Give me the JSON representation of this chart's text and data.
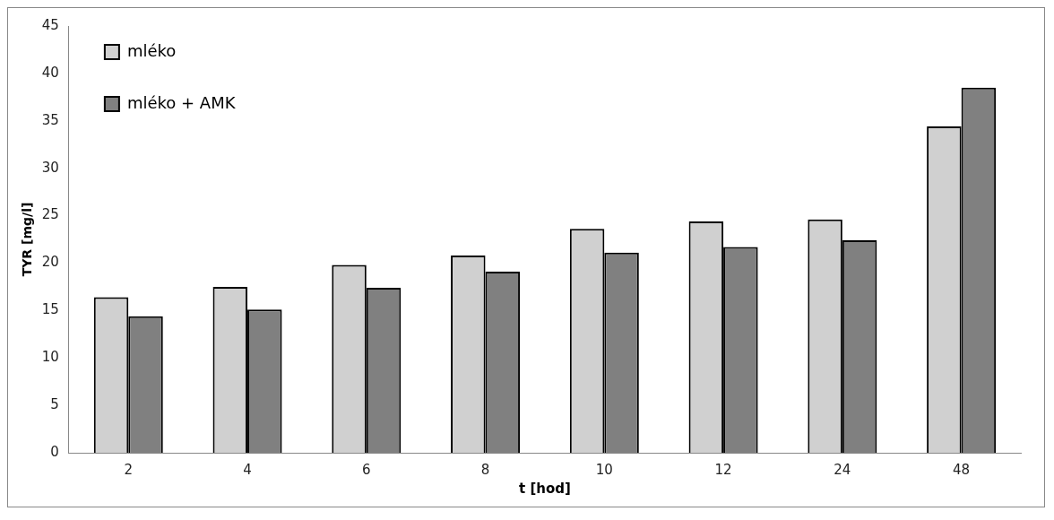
{
  "chart_data": {
    "type": "bar",
    "xlabel": "t [hod]",
    "ylabel": "TYR [mg/l]",
    "categories": [
      "2",
      "4",
      "6",
      "8",
      "10",
      "12",
      "24",
      "48"
    ],
    "series": [
      {
        "name": "mléko",
        "color": "#d0d0d0",
        "values": [
          16.4,
          17.5,
          19.8,
          20.8,
          23.6,
          24.4,
          24.6,
          34.4
        ]
      },
      {
        "name": "mléko + AMK",
        "color": "#808080",
        "values": [
          14.4,
          15.1,
          17.4,
          19.1,
          21.1,
          21.7,
          22.4,
          38.5
        ]
      }
    ],
    "ylim": [
      0,
      45
    ],
    "yticks": [
      0,
      5,
      10,
      15,
      20,
      25,
      30,
      35,
      40,
      45
    ],
    "grid": false,
    "legend": "top left"
  }
}
